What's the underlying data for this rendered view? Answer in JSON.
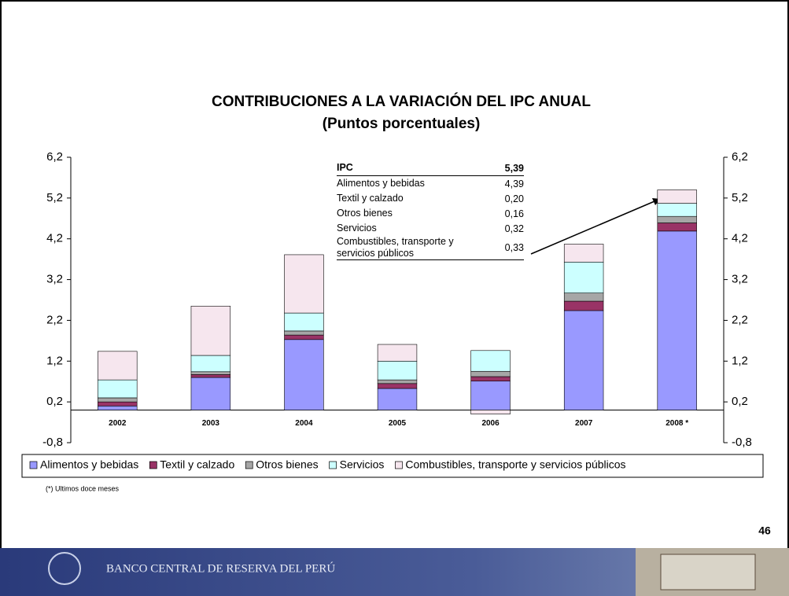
{
  "chart_data": {
    "type": "stacked_bar",
    "title": "CONTRIBUCIONES A LA VARIACIÓN DEL IPC ANUAL",
    "subtitle": "(Puntos porcentuales)",
    "categories": [
      "2002",
      "2003",
      "2004",
      "2005",
      "2006",
      "2007",
      "2008 *"
    ],
    "series": [
      {
        "name": "Alimentos y bebidas",
        "color": "#9999ff",
        "values": [
          0.1,
          0.8,
          1.73,
          0.53,
          0.71,
          2.44,
          4.39
        ]
      },
      {
        "name": "Textil y calzado",
        "color": "#993366",
        "values": [
          0.1,
          0.07,
          0.11,
          0.12,
          0.11,
          0.23,
          0.2
        ]
      },
      {
        "name": "Otros bienes",
        "color": "#a6a6a6",
        "values": [
          0.1,
          0.07,
          0.1,
          0.09,
          0.13,
          0.2,
          0.16
        ]
      },
      {
        "name": "Servicios",
        "color": "#ccffff",
        "values": [
          0.44,
          0.4,
          0.44,
          0.46,
          0.51,
          0.76,
          0.32
        ]
      },
      {
        "name": "Combustibles, transporte y servicios públicos",
        "color": "#f6e6ee",
        "values": [
          0.7,
          1.21,
          1.43,
          0.41,
          -0.1,
          0.44,
          0.33
        ]
      }
    ],
    "ylim": [
      -0.8,
      6.2
    ],
    "yticks": [
      {
        "value": -0.8,
        "label": "-0,8"
      },
      {
        "value": 0.2,
        "label": "0,2"
      },
      {
        "value": 1.2,
        "label": "1,2"
      },
      {
        "value": 2.2,
        "label": "2,2"
      },
      {
        "value": 3.2,
        "label": "3,2"
      },
      {
        "value": 4.2,
        "label": "4,2"
      },
      {
        "value": 5.2,
        "label": "5,2"
      },
      {
        "value": 6.2,
        "label": "6,2"
      }
    ],
    "legend": "bottom",
    "table": {
      "header": [
        "IPC",
        "5,39"
      ],
      "rows": [
        [
          "Alimentos y bebidas",
          "4,39"
        ],
        [
          "Textil y calzado",
          "0,20"
        ],
        [
          "Otros bienes",
          "0,16"
        ],
        [
          "Servicios",
          "0,32"
        ],
        [
          "Combustibles, transporte y servicios públicos",
          "0,33"
        ]
      ]
    },
    "footnote": "(*) Ultimos doce meses"
  },
  "page_number": "46",
  "footer": "BANCO CENTRAL DE RESERVA DEL PERÚ"
}
